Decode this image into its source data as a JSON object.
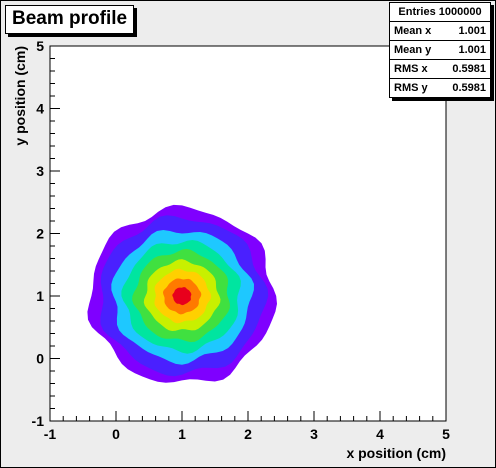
{
  "title": "Beam profile",
  "stats": {
    "header": "Entries 1000000",
    "rows": [
      {
        "label": "Mean x",
        "value": "1.001"
      },
      {
        "label": "Mean y",
        "value": "1.001"
      },
      {
        "label": "RMS x",
        "value": "0.5981"
      },
      {
        "label": "RMS y",
        "value": "0.5981"
      }
    ]
  },
  "chart_data": {
    "type": "heatmap",
    "subtype": "gaussian-contour",
    "xlabel": "x position (cm)",
    "ylabel": "y position (cm)",
    "xlim": [
      -1,
      5
    ],
    "ylim": [
      -1,
      5
    ],
    "x_ticks": [
      "-1",
      "0",
      "1",
      "2",
      "3",
      "4",
      "5"
    ],
    "y_ticks": [
      "-1",
      "0",
      "1",
      "2",
      "3",
      "4",
      "5"
    ],
    "center": {
      "x": 1.0,
      "y": 1.0
    },
    "contour_radii": [
      1.4,
      1.25,
      1.05,
      0.88,
      0.72,
      0.56,
      0.42,
      0.28,
      0.14
    ],
    "palette": [
      "#7f00ff",
      "#4a20ff",
      "#1ec8ff",
      "#00e5a0",
      "#40e040",
      "#c8f000",
      "#ffd000",
      "#ff7a00",
      "#e8001c"
    ],
    "colors": {
      "frame_bg": "#ededed",
      "plot_bg": "#ffffff"
    }
  }
}
